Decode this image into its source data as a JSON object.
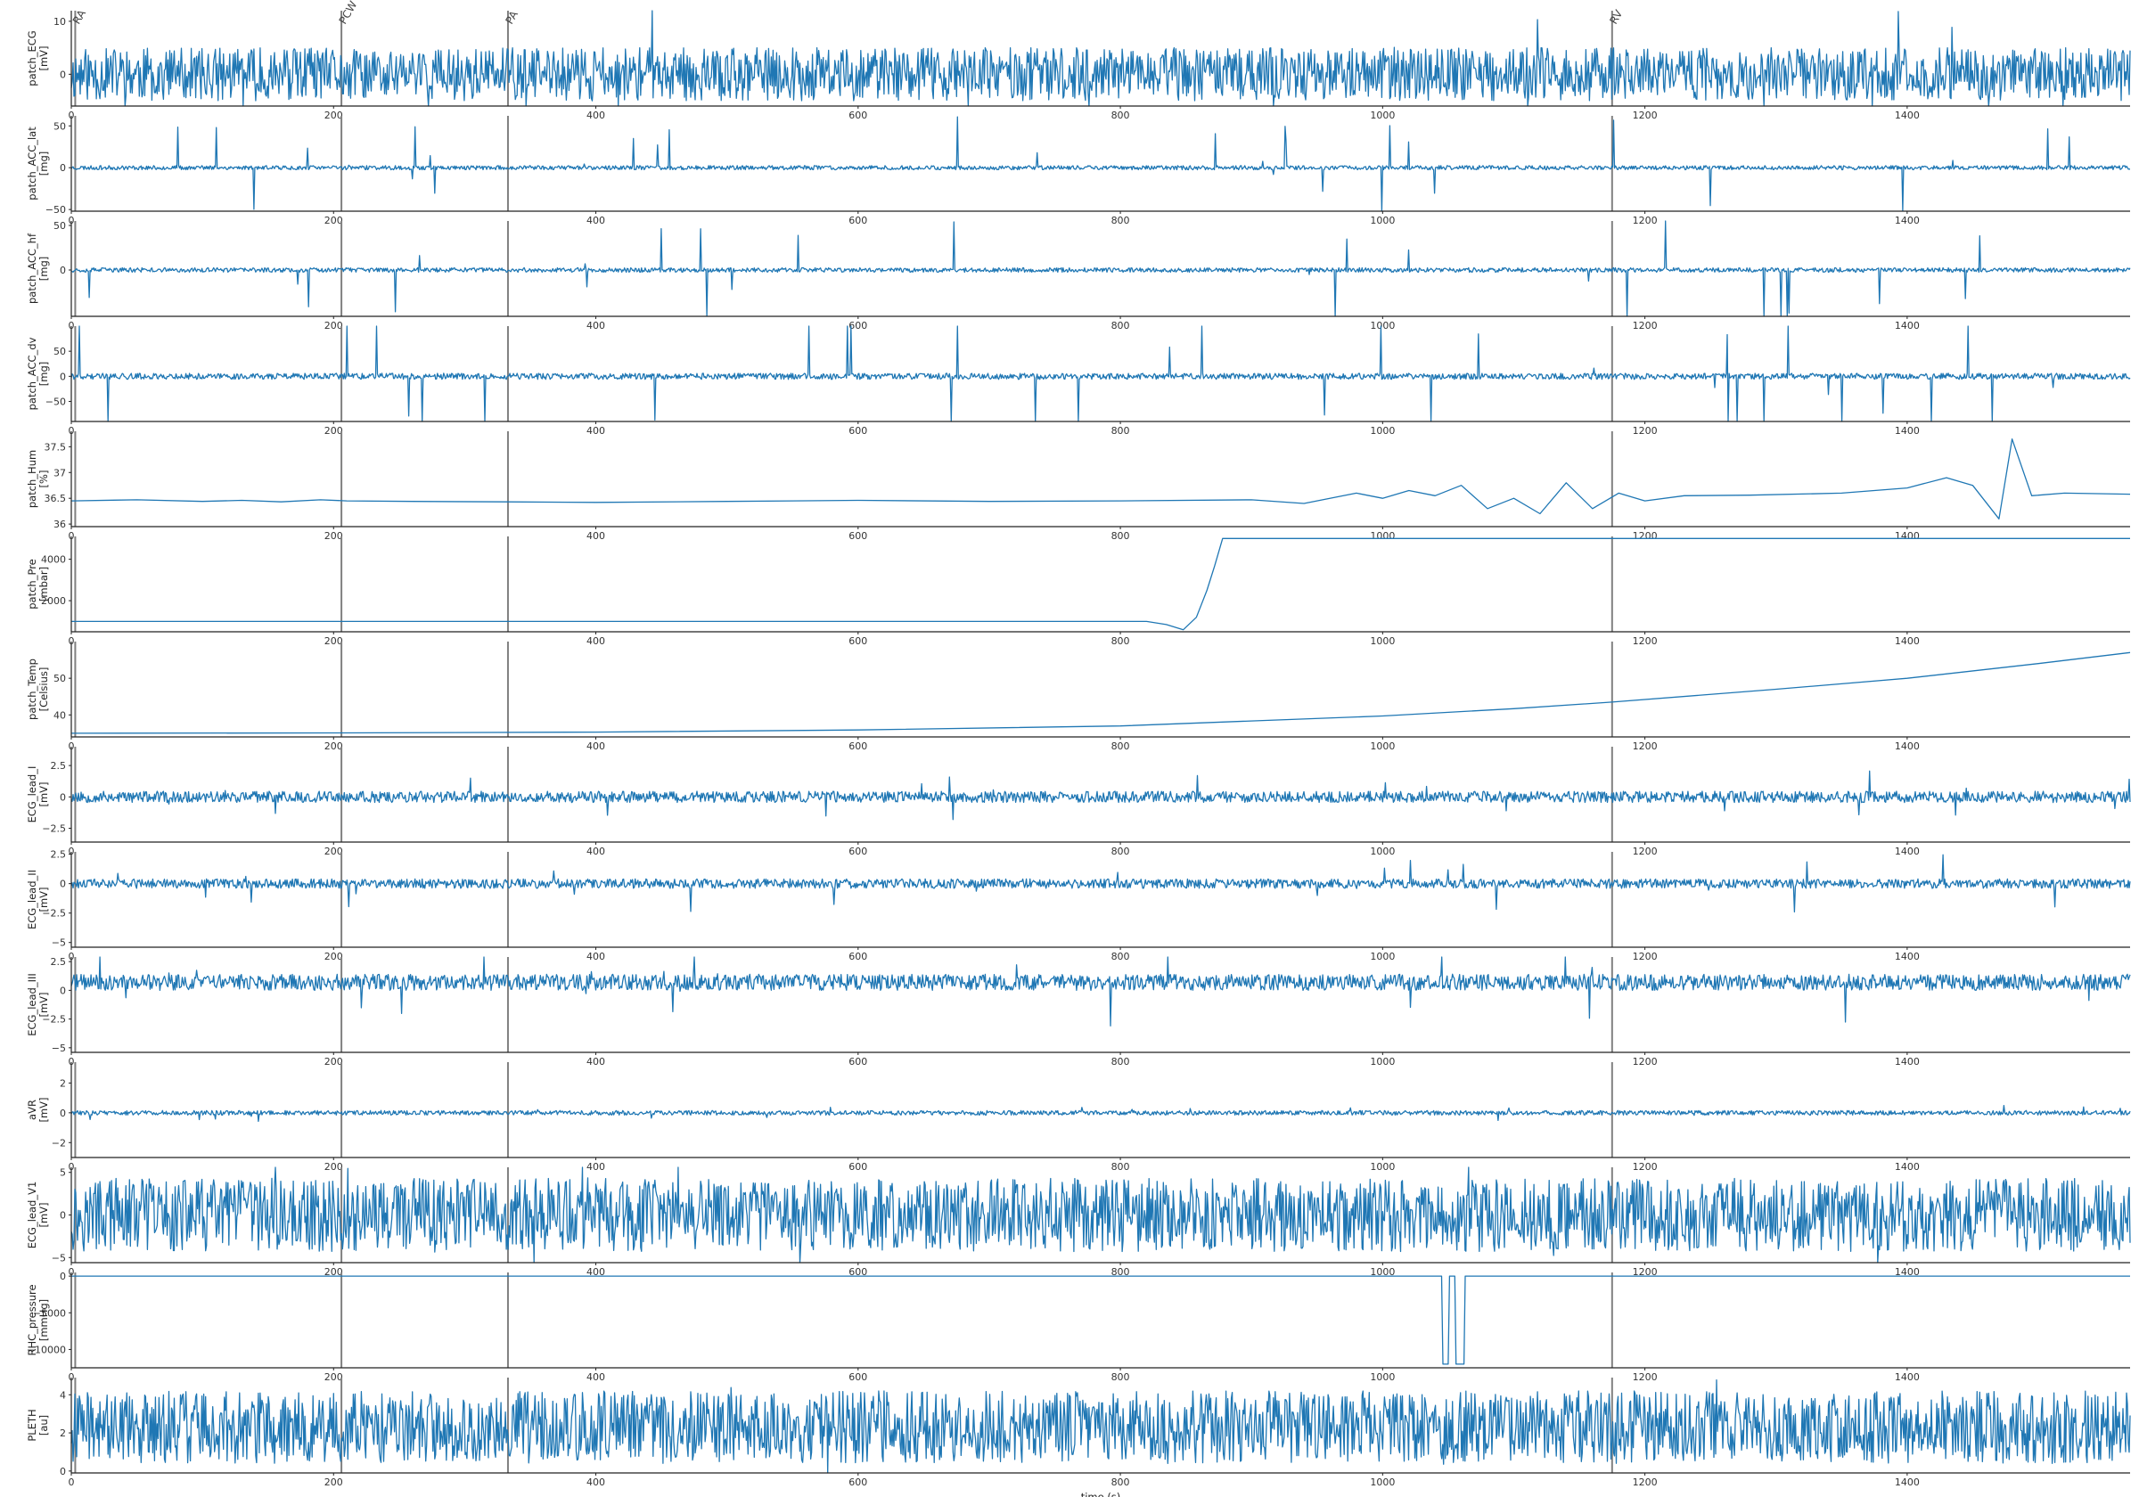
{
  "colors": {
    "trace": "#1f77b4",
    "event_line": "#808080",
    "axis": "#222222"
  },
  "chart_data": {
    "type": "line",
    "x_axis": {
      "label": "time (s)",
      "xlim": [
        0,
        1570
      ],
      "ticks": [
        0,
        200,
        400,
        600,
        800,
        1000,
        1200,
        1400
      ]
    },
    "grid": false,
    "events": [
      {
        "x": 3,
        "label": "RA"
      },
      {
        "x": 206,
        "label": "PCW"
      },
      {
        "x": 333,
        "label": "PA"
      },
      {
        "x": 1175,
        "label": "RV"
      }
    ],
    "panels": [
      {
        "name": "patch_ECG",
        "unit": "[mV]",
        "ylim": [
          -6,
          12
        ],
        "yticks": [
          0,
          10
        ],
        "kind": "noise",
        "base": 0,
        "amp": 5,
        "spike": 1.6,
        "seed": 11
      },
      {
        "name": "patch_ACC_lat",
        "unit": "[mg]",
        "ylim": [
          -52,
          62
        ],
        "yticks": [
          -50,
          0,
          50
        ],
        "kind": "noise",
        "base": 0,
        "amp": 2.5,
        "spike": 12,
        "seed": 23
      },
      {
        "name": "patch_ACC_hf",
        "unit": "[mg]",
        "ylim": [
          -52,
          55
        ],
        "yticks": [
          0,
          50
        ],
        "kind": "noise",
        "base": 0,
        "amp": 2.5,
        "spike": 15,
        "seed": 37
      },
      {
        "name": "patch_ACC_dv",
        "unit": "[mg]",
        "ylim": [
          -90,
          100
        ],
        "yticks": [
          -50,
          0,
          50
        ],
        "kind": "noise",
        "base": 0,
        "amp": 6,
        "spike": 22,
        "seed": 41
      },
      {
        "name": "patch_Hum",
        "unit": "[%]",
        "ylim": [
          35.95,
          37.8
        ],
        "yticks": [
          36.0,
          36.5,
          37.0,
          37.5
        ],
        "kind": "points",
        "x": [
          0,
          50,
          100,
          130,
          160,
          190,
          210,
          260,
          330,
          400,
          500,
          600,
          700,
          800,
          900,
          940,
          980,
          1000,
          1020,
          1040,
          1060,
          1080,
          1100,
          1120,
          1140,
          1160,
          1180,
          1200,
          1230,
          1280,
          1350,
          1400,
          1430,
          1450,
          1470,
          1480,
          1495,
          1520,
          1570
        ],
        "y": [
          36.45,
          36.47,
          36.44,
          36.46,
          36.43,
          36.47,
          36.45,
          36.44,
          36.43,
          36.42,
          36.44,
          36.46,
          36.44,
          36.45,
          36.47,
          36.4,
          36.6,
          36.5,
          36.65,
          36.55,
          36.75,
          36.3,
          36.5,
          36.2,
          36.8,
          36.3,
          36.6,
          36.45,
          36.55,
          36.56,
          36.6,
          36.7,
          36.9,
          36.75,
          36.1,
          37.65,
          36.55,
          36.6,
          36.58
        ]
      },
      {
        "name": "patch_Pre",
        "unit": "[mbar]",
        "ylim": [
          500,
          5100
        ],
        "yticks": [
          2000,
          4000
        ],
        "kind": "points",
        "x": [
          0,
          820,
          835,
          848,
          858,
          866,
          872,
          878,
          1570
        ],
        "y": [
          1000,
          1000,
          850,
          600,
          1200,
          2500,
          3700,
          5000,
          5000
        ]
      },
      {
        "name": "patch_Temp",
        "unit": "[Celsius]",
        "ylim": [
          34,
          60
        ],
        "yticks": [
          40,
          50
        ],
        "kind": "points",
        "x": [
          0,
          200,
          400,
          600,
          800,
          1000,
          1100,
          1175,
          1300,
          1400,
          1500,
          1570
        ],
        "y": [
          35.0,
          35.1,
          35.3,
          35.9,
          37.0,
          39.7,
          41.7,
          43.5,
          47.0,
          50.0,
          54.0,
          57.0
        ]
      },
      {
        "name": "ECG_lead_I",
        "unit": "[mV]",
        "ylim": [
          -3.6,
          4.0
        ],
        "yticks": [
          -2.5,
          0.0,
          2.5
        ],
        "kind": "noise",
        "base": 0,
        "amp": 0.45,
        "spike": 2.2,
        "seed": 53
      },
      {
        "name": "ECG_lead_II",
        "unit": "[mV]",
        "ylim": [
          -5.4,
          2.7
        ],
        "yticks": [
          -5.0,
          -2.5,
          0.0,
          2.5
        ],
        "kind": "noise",
        "base": 0,
        "amp": 0.4,
        "spike": 2.8,
        "seed": 61
      },
      {
        "name": "ECG_lead_III",
        "unit": "[mV]",
        "ylim": [
          -5.4,
          2.9
        ],
        "yticks": [
          -5.0,
          -2.5,
          0.0,
          2.5
        ],
        "kind": "noise",
        "base": 0.7,
        "amp": 0.7,
        "spike": 2.6,
        "seed": 71
      },
      {
        "name": "aVR",
        "unit": "[mV]",
        "ylim": [
          -3.0,
          3.4
        ],
        "yticks": [
          -2,
          0,
          2
        ],
        "kind": "noise",
        "base": 0,
        "amp": 0.15,
        "spike": 1.8,
        "seed": 83
      },
      {
        "name": "ECG_lead_V1",
        "unit": "[mV]",
        "ylim": [
          -5.6,
          5.6
        ],
        "yticks": [
          -5,
          0,
          5
        ],
        "kind": "noise",
        "base": 0,
        "amp": 4.3,
        "spike": 1.0,
        "seed": 97
      },
      {
        "name": "RHC_pressure",
        "unit": "[mmHg]",
        "ylim": [
          -12500,
          500
        ],
        "yticks": [
          -10000,
          -5000,
          0
        ],
        "kind": "points",
        "x": [
          0,
          1045,
          1046,
          1050,
          1051,
          1055,
          1056,
          1062,
          1063,
          1066,
          1067,
          1570
        ],
        "y": [
          0,
          0,
          -12000,
          -12000,
          0,
          0,
          -12000,
          -12000,
          0,
          0,
          0,
          0
        ]
      },
      {
        "name": "PLETH",
        "unit": "[au]",
        "ylim": [
          -0.1,
          4.9
        ],
        "yticks": [
          0,
          2,
          4
        ],
        "kind": "noise",
        "base": 2.3,
        "amp": 1.9,
        "spike": 0.3,
        "seed": 109
      }
    ]
  }
}
